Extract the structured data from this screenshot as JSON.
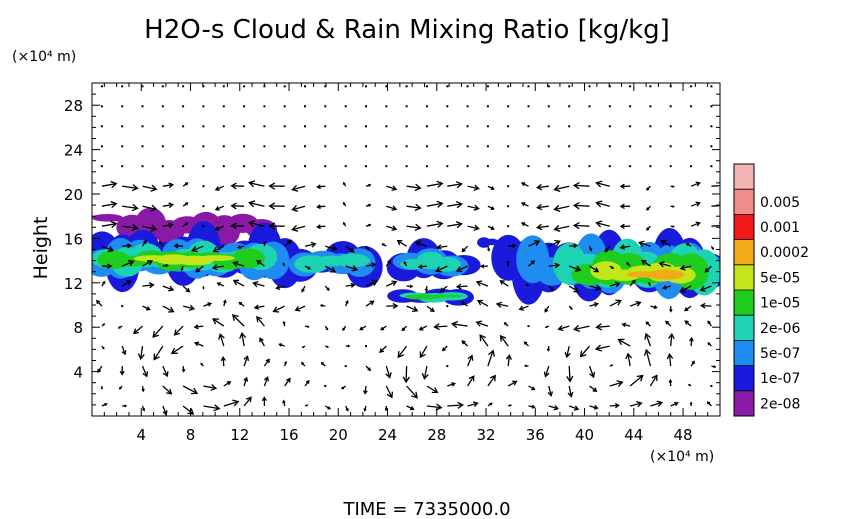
{
  "chart_data": {
    "type": "heatmap",
    "title": "H2O-s Cloud & Rain Mixing Ratio [kg/kg]",
    "ylabel": "Height",
    "y_unit_label": "(×10⁴ m)",
    "x_unit_label": "(×10⁴ m)",
    "footer": "TIME  =  7335000.0",
    "xlim": [
      0,
      51
    ],
    "ylim": [
      0,
      30
    ],
    "x_ticks": [
      {
        "v": 4,
        "label": "4"
      },
      {
        "v": 8,
        "label": "8"
      },
      {
        "v": 12,
        "label": "12"
      },
      {
        "v": 16,
        "label": "16"
      },
      {
        "v": 20,
        "label": "20"
      },
      {
        "v": 24,
        "label": "24"
      },
      {
        "v": 28,
        "label": "28"
      },
      {
        "v": 32,
        "label": "32"
      },
      {
        "v": 36,
        "label": "36"
      },
      {
        "v": 40,
        "label": "40"
      },
      {
        "v": 44,
        "label": "44"
      },
      {
        "v": 48,
        "label": "48"
      }
    ],
    "y_ticks": [
      {
        "v": 4,
        "label": "4"
      },
      {
        "v": 8,
        "label": "8"
      },
      {
        "v": 12,
        "label": "12"
      },
      {
        "v": 16,
        "label": "16"
      },
      {
        "v": 20,
        "label": "20"
      },
      {
        "v": 24,
        "label": "24"
      },
      {
        "v": 28,
        "label": "28"
      }
    ],
    "colorbar": [
      {
        "label": "2e-08",
        "color": "#8a1aa6"
      },
      {
        "label": "1e-07",
        "color": "#1a1adc"
      },
      {
        "label": "5e-07",
        "color": "#1e8cf0"
      },
      {
        "label": "2e-06",
        "color": "#1ed2b4"
      },
      {
        "label": "1e-05",
        "color": "#1ecd1e"
      },
      {
        "label": "5e-05",
        "color": "#c2e61a"
      },
      {
        "label": "0.0002",
        "color": "#f0aa1a"
      },
      {
        "label": "0.001",
        "color": "#f01a1a"
      },
      {
        "label": "0.005",
        "color": "#f08c8c"
      }
    ],
    "colorbar_tops": [
      "#8a1aa6",
      "#1a1adc",
      "#1e8cf0",
      "#1ed2b4",
      "#1ecd1e",
      "#c2e61a",
      "#f0aa1a",
      "#f01a1a",
      "#f08c8c",
      "#f5b4b4"
    ],
    "cloud_regions": [
      {
        "level": 0,
        "x0": 2.5,
        "x1": 14.5,
        "y0": 15.5,
        "y1": 18.5
      },
      {
        "level": 0,
        "x0": 0.5,
        "x1": 3.5,
        "y0": 17.3,
        "y1": 18.2
      },
      {
        "level": 1,
        "x0": 0,
        "x1": 16.5,
        "y0": 11.8,
        "y1": 17.0
      },
      {
        "level": 1,
        "x0": 16.0,
        "x1": 23.0,
        "y0": 12.0,
        "y1": 15.8
      },
      {
        "level": 1,
        "x0": 24.5,
        "x1": 31.0,
        "y0": 12.0,
        "y1": 15.6
      },
      {
        "level": 1,
        "x0": 31.5,
        "x1": 32.8,
        "y0": 15.0,
        "y1": 16.2
      },
      {
        "level": 1,
        "x0": 33.0,
        "x1": 51,
        "y0": 10.5,
        "y1": 16.5
      },
      {
        "level": 1,
        "x0": 24.5,
        "x1": 30.5,
        "y0": 10.0,
        "y1": 11.5
      },
      {
        "level": 2,
        "x0": 0,
        "x1": 15.5,
        "y0": 12.3,
        "y1": 16.0
      },
      {
        "level": 2,
        "x0": 16.5,
        "x1": 22.5,
        "y0": 12.6,
        "y1": 15.2
      },
      {
        "level": 2,
        "x0": 25.0,
        "x1": 30.0,
        "y0": 12.6,
        "y1": 15.0
      },
      {
        "level": 2,
        "x0": 35.0,
        "x1": 50.8,
        "y0": 11.0,
        "y1": 16.0
      },
      {
        "level": 3,
        "x0": 0.5,
        "x1": 14.5,
        "y0": 12.8,
        "y1": 15.5
      },
      {
        "level": 3,
        "x0": 17.0,
        "x1": 22.0,
        "y0": 13.0,
        "y1": 14.8
      },
      {
        "level": 3,
        "x0": 25.5,
        "x1": 29.5,
        "y0": 13.0,
        "y1": 14.6
      },
      {
        "level": 3,
        "x0": 38.0,
        "x1": 50.5,
        "y0": 11.3,
        "y1": 15.5
      },
      {
        "level": 3,
        "x0": 25.5,
        "x1": 30.0,
        "y0": 10.3,
        "y1": 11.2
      },
      {
        "level": 4,
        "x0": 1.0,
        "x1": 13.5,
        "y0": 13.2,
        "y1": 15.0
      },
      {
        "level": 4,
        "x0": 39.5,
        "x1": 49.5,
        "y0": 11.5,
        "y1": 14.8
      },
      {
        "level": 4,
        "x0": 26.0,
        "x1": 29.5,
        "y0": 10.5,
        "y1": 11.0
      },
      {
        "level": 5,
        "x0": 4.0,
        "x1": 11.0,
        "y0": 13.6,
        "y1": 14.6
      },
      {
        "level": 5,
        "x0": 41.0,
        "x1": 48.5,
        "y0": 12.0,
        "y1": 13.8
      },
      {
        "level": 6,
        "x0": 44.0,
        "x1": 47.5,
        "y0": 12.3,
        "y1": 13.3
      }
    ]
  }
}
